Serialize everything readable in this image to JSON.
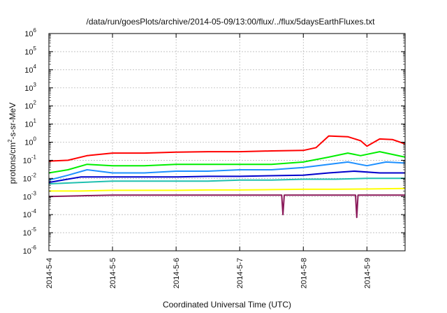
{
  "chart_data": {
    "type": "line",
    "title": "/data/run/goesPlots/archive/2014-05-09/13:00/flux/../flux/5daysEarthFluxes.txt",
    "xlabel": "Coordinated Universal Time (UTC)",
    "ylabel_parts": {
      "pre": "protons/cm",
      "sup": "2",
      "post": "-s-sr-MeV"
    },
    "y_scale": "log",
    "ylim_exponents": [
      -6,
      6
    ],
    "y_tick_base": "10",
    "y_tick_exponents": [
      "-6",
      "-5",
      "-4",
      "-3",
      "-2",
      "-1",
      "0",
      "1",
      "2",
      "3",
      "4",
      "5",
      "6"
    ],
    "xlim_days": [
      0,
      5.6
    ],
    "x_ticks": [
      {
        "label": "2014-5-4",
        "day": 0
      },
      {
        "label": "2014-5-5",
        "day": 1
      },
      {
        "label": "2014-5-6",
        "day": 2
      },
      {
        "label": "2014-5-7",
        "day": 3
      },
      {
        "label": "2014-5-8",
        "day": 4
      },
      {
        "label": "2014-5-9",
        "day": 5
      }
    ],
    "grid": true,
    "legend": "none",
    "series": [
      {
        "color": "#ff0000",
        "points": [
          [
            0,
            0.09
          ],
          [
            0.3,
            0.1
          ],
          [
            0.6,
            0.18
          ],
          [
            1,
            0.25
          ],
          [
            1.5,
            0.25
          ],
          [
            2,
            0.28
          ],
          [
            2.5,
            0.3
          ],
          [
            3,
            0.3
          ],
          [
            3.5,
            0.33
          ],
          [
            4,
            0.35
          ],
          [
            4.2,
            0.5
          ],
          [
            4.4,
            2.2
          ],
          [
            4.7,
            2.0
          ],
          [
            4.9,
            1.2
          ],
          [
            5.0,
            0.6
          ],
          [
            5.2,
            1.5
          ],
          [
            5.4,
            1.4
          ],
          [
            5.6,
            0.8
          ]
        ]
      },
      {
        "color": "#00ee00",
        "points": [
          [
            0,
            0.02
          ],
          [
            0.3,
            0.03
          ],
          [
            0.6,
            0.06
          ],
          [
            1,
            0.05
          ],
          [
            1.5,
            0.05
          ],
          [
            2,
            0.06
          ],
          [
            2.5,
            0.06
          ],
          [
            3,
            0.06
          ],
          [
            3.5,
            0.06
          ],
          [
            4,
            0.08
          ],
          [
            4.4,
            0.15
          ],
          [
            4.7,
            0.25
          ],
          [
            4.9,
            0.18
          ],
          [
            5.2,
            0.3
          ],
          [
            5.6,
            0.15
          ]
        ]
      },
      {
        "color": "#1e90ff",
        "points": [
          [
            0,
            0.008
          ],
          [
            0.3,
            0.015
          ],
          [
            0.6,
            0.03
          ],
          [
            1,
            0.02
          ],
          [
            1.5,
            0.02
          ],
          [
            2,
            0.025
          ],
          [
            2.5,
            0.025
          ],
          [
            3,
            0.03
          ],
          [
            3.5,
            0.03
          ],
          [
            4,
            0.04
          ],
          [
            4.4,
            0.06
          ],
          [
            4.7,
            0.08
          ],
          [
            5.0,
            0.05
          ],
          [
            5.3,
            0.08
          ],
          [
            5.6,
            0.07
          ]
        ]
      },
      {
        "color": "#0000cc",
        "points": [
          [
            0,
            0.006
          ],
          [
            0.5,
            0.012
          ],
          [
            1,
            0.012
          ],
          [
            1.5,
            0.012
          ],
          [
            2,
            0.012
          ],
          [
            2.5,
            0.013
          ],
          [
            3,
            0.013
          ],
          [
            3.5,
            0.014
          ],
          [
            4,
            0.015
          ],
          [
            4.4,
            0.02
          ],
          [
            4.8,
            0.025
          ],
          [
            5.2,
            0.02
          ],
          [
            5.6,
            0.02
          ]
        ]
      },
      {
        "color": "#20c0b0",
        "points": [
          [
            0,
            0.005
          ],
          [
            0.5,
            0.006
          ],
          [
            1,
            0.007
          ],
          [
            1.5,
            0.007
          ],
          [
            2,
            0.007
          ],
          [
            2.5,
            0.007
          ],
          [
            3,
            0.008
          ],
          [
            3.5,
            0.008
          ],
          [
            4,
            0.009
          ],
          [
            4.5,
            0.009
          ],
          [
            5,
            0.01
          ],
          [
            5.6,
            0.01
          ]
        ]
      },
      {
        "color": "#ffff00",
        "points": [
          [
            0,
            0.002
          ],
          [
            0.5,
            0.002
          ],
          [
            1,
            0.0022
          ],
          [
            1.5,
            0.0022
          ],
          [
            2,
            0.0022
          ],
          [
            2.5,
            0.0023
          ],
          [
            3,
            0.0023
          ],
          [
            3.5,
            0.0024
          ],
          [
            4,
            0.0025
          ],
          [
            4.5,
            0.0025
          ],
          [
            5,
            0.0026
          ],
          [
            5.6,
            0.0028
          ]
        ]
      },
      {
        "color": "#8b1a5a",
        "points": [
          [
            0,
            0.001
          ],
          [
            0.5,
            0.0011
          ],
          [
            1,
            0.0012
          ],
          [
            1.5,
            0.0012
          ],
          [
            2,
            0.0012
          ],
          [
            2.5,
            0.0012
          ],
          [
            3,
            0.0012
          ],
          [
            3.5,
            0.0012
          ],
          [
            3.66,
            0.0012
          ],
          [
            3.68,
            0.0001
          ],
          [
            3.7,
            0.0012
          ],
          [
            4,
            0.0012
          ],
          [
            4.5,
            0.0012
          ],
          [
            4.82,
            0.0012
          ],
          [
            4.84,
            7e-05
          ],
          [
            4.86,
            0.0012
          ],
          [
            5.2,
            0.0012
          ],
          [
            5.6,
            0.0012
          ]
        ]
      }
    ]
  }
}
